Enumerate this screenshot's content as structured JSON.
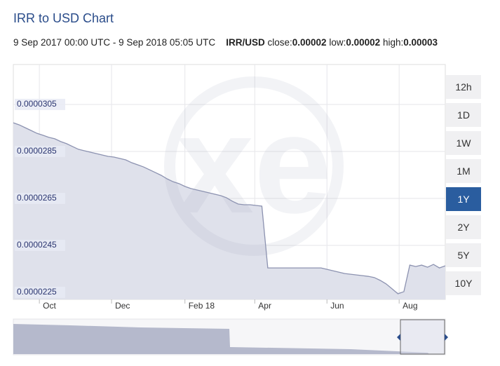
{
  "chart_data": {
    "type": "area",
    "title": "IRR to USD Chart",
    "subtitle": "9 Sep 2017 00:00 UTC - 9 Sep 2018 05:05 UTC",
    "pair": "IRR/USD",
    "stats": [
      {
        "label": "close:",
        "value": "0.00002"
      },
      {
        "label": "low:",
        "value": "0.00002"
      },
      {
        "label": "high:",
        "value": "0.00003"
      }
    ],
    "series": [
      {
        "name": "IRR/USD",
        "color": "#8c92b0",
        "fill": "#dfe1eb",
        "values": [
          2.972e-05,
          2.963e-05,
          2.951e-05,
          2.939e-05,
          2.927e-05,
          2.919e-05,
          2.91e-05,
          2.904e-05,
          2.892e-05,
          2.883e-05,
          2.871e-05,
          2.859e-05,
          2.853e-05,
          2.847e-05,
          2.841e-05,
          2.835e-05,
          2.829e-05,
          2.826e-05,
          2.82e-05,
          2.814e-05,
          2.802e-05,
          2.793e-05,
          2.784e-05,
          2.772e-05,
          2.76e-05,
          2.748e-05,
          2.733e-05,
          2.721e-05,
          2.713e-05,
          2.701e-05,
          2.692e-05,
          2.686e-05,
          2.68e-05,
          2.674e-05,
          2.668e-05,
          2.662e-05,
          2.653e-05,
          2.638e-05,
          2.626e-05,
          2.623e-05,
          2.623e-05,
          2.62e-05,
          2.617e-05,
          2.354e-05,
          2.354e-05,
          2.354e-05,
          2.354e-05,
          2.354e-05,
          2.354e-05,
          2.354e-05,
          2.354e-05,
          2.354e-05,
          2.354e-05,
          2.348e-05,
          2.342e-05,
          2.336e-05,
          2.33e-05,
          2.327e-05,
          2.324e-05,
          2.321e-05,
          2.318e-05,
          2.313e-05,
          2.301e-05,
          2.286e-05,
          2.265e-05,
          2.244e-05,
          2.253e-05,
          2.366e-05,
          2.36e-05,
          2.366e-05,
          2.357e-05,
          2.369e-05,
          2.354e-05,
          2.363e-05
        ]
      }
    ],
    "xlim": [
      0,
      73
    ],
    "xticks": [
      {
        "value": 4.4,
        "label": "Oct"
      },
      {
        "value": 16.6,
        "label": "Dec"
      },
      {
        "value": 29,
        "label": "Feb 18"
      },
      {
        "value": 40.8,
        "label": "Apr"
      },
      {
        "value": 53,
        "label": "Jun"
      },
      {
        "value": 65.2,
        "label": "Aug"
      }
    ],
    "ylim": [
      2.22e-05,
      3.22e-05
    ],
    "yticks": [
      2.25e-05,
      2.45e-05,
      2.65e-05,
      2.85e-05,
      3.05e-05
    ],
    "grid": true,
    "ranges": [
      "12h",
      "1D",
      "1W",
      "1M",
      "1Y",
      "2Y",
      "5Y",
      "10Y"
    ],
    "selected_range": 4
  }
}
